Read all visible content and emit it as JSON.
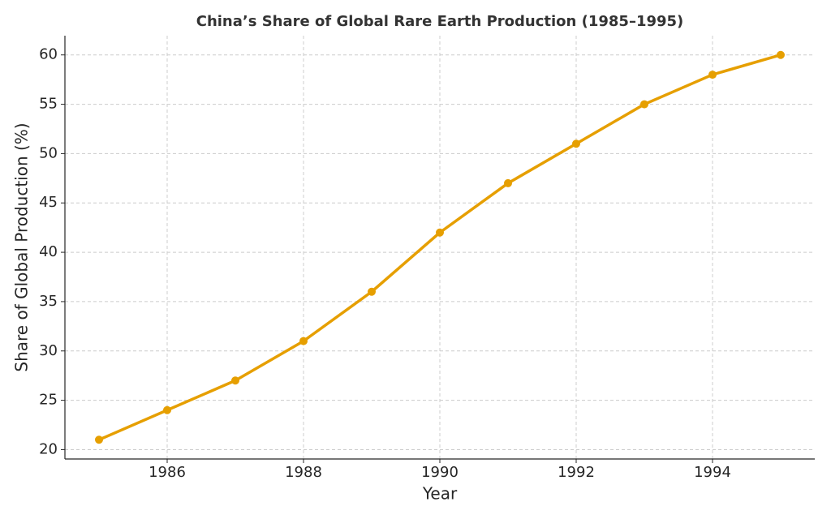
{
  "chart_data": {
    "type": "line",
    "title": "China’s Share of Global Rare Earth Production (1985–1995)",
    "x_label": "Year",
    "y_label": "Share of Global Production (%)",
    "x": [
      1985,
      1986,
      1987,
      1988,
      1989,
      1990,
      1991,
      1992,
      1993,
      1994,
      1995
    ],
    "series": [
      {
        "name": "China",
        "color": "#e69f00",
        "values": [
          21,
          24,
          27,
          31,
          36,
          42,
          47,
          51,
          55,
          58,
          60
        ]
      }
    ],
    "xlim": [
      1984.5,
      1995.5
    ],
    "xticks": [
      1986,
      1988,
      1990,
      1992,
      1994
    ],
    "ylim": [
      19.05,
      61.95
    ],
    "yticks": [
      20,
      25,
      30,
      35,
      40,
      45,
      50,
      55,
      60
    ],
    "grid": true,
    "legend": false
  }
}
